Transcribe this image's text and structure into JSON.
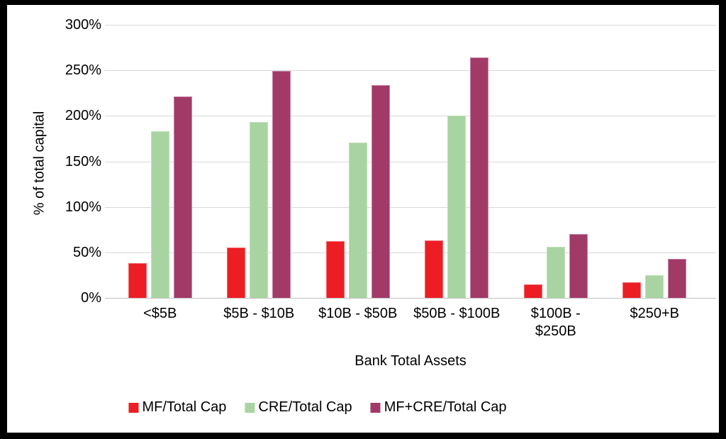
{
  "chart_data": {
    "type": "bar",
    "title": "",
    "xlabel": "Bank Total Assets",
    "ylabel": "% of total capital",
    "categories": [
      "<$5B",
      "$5B - $10B",
      "$10B - $50B",
      "$50B - $100B",
      "$100B -\n$250B",
      "$250+B"
    ],
    "series": [
      {
        "name": "MF/Total Cap",
        "color": "#EC1E24",
        "border_color": "#F4696D",
        "values": [
          38,
          55,
          62,
          63,
          15,
          17
        ]
      },
      {
        "name": "CRE/Total Cap",
        "color": "#A8D4A1",
        "border_color": "#C2E0BC",
        "values": [
          183,
          193,
          171,
          200,
          56,
          25
        ]
      },
      {
        "name": "MF+CRE/Total Cap",
        "color": "#A23A68",
        "border_color": "#C583A4",
        "values": [
          221,
          249,
          234,
          264,
          70,
          43
        ]
      }
    ],
    "ylim": [
      0,
      300
    ],
    "ytick_step": 50,
    "ytick_labels": [
      "0%",
      "50%",
      "100%",
      "150%",
      "200%",
      "250%",
      "300%"
    ],
    "grid": true,
    "legend_position": "bottom",
    "colors": {
      "frame": "#000000",
      "background": "#FFFFFF",
      "gridline": "#D9D9D9",
      "axis_line": "#BFBFBF",
      "text": "#000000"
    }
  }
}
